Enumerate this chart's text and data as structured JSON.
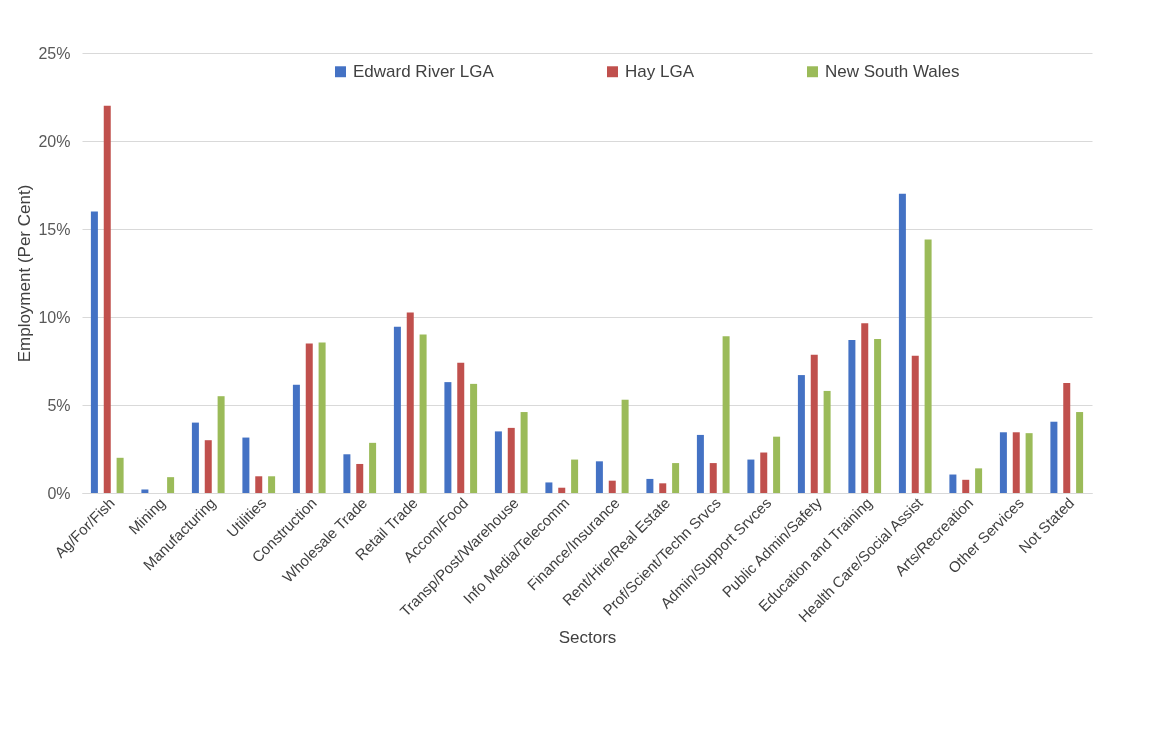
{
  "chart_data": {
    "type": "bar",
    "xlabel": "Sectors",
    "ylabel": "Employment (Per Cent)",
    "categories": [
      "Ag/For/Fish",
      "Mining",
      "Manufacturing",
      "Utilities",
      "Construction",
      "Wholesale Trade",
      "Retail Trade",
      "Accom/Food",
      "Transp/Post/Warehouse",
      "Info Media/Telecomm",
      "Finance/Insurance",
      "Rent/Hire/Real Estate",
      "Prof/Scient/Techn Srvcs",
      "Admin/Support Srvces",
      "Public Admin/Safety",
      "Education and Training",
      "Health Care/Social Assist",
      "Arts/Recreation",
      "Other Services",
      "Not Stated"
    ],
    "series": [
      {
        "name": "Edward River LGA",
        "color": "#4472c4",
        "values": [
          16.0,
          0.2,
          4.0,
          3.15,
          6.15,
          2.2,
          9.45,
          6.3,
          3.5,
          0.6,
          1.8,
          0.8,
          3.3,
          1.9,
          6.7,
          8.7,
          17.0,
          1.05,
          3.45,
          4.05
        ]
      },
      {
        "name": "Hay LGA",
        "color": "#c0504d",
        "values": [
          22.0,
          0,
          3.0,
          0.95,
          8.5,
          1.65,
          10.25,
          7.4,
          3.7,
          0.3,
          0.7,
          0.55,
          1.7,
          2.3,
          7.85,
          9.65,
          7.8,
          0.75,
          3.45,
          6.25
        ]
      },
      {
        "name": "New South Wales",
        "color": "#9bbb59",
        "values": [
          2.0,
          0.9,
          5.5,
          0.95,
          8.55,
          2.85,
          9.0,
          6.2,
          4.6,
          1.9,
          5.3,
          1.7,
          8.9,
          3.2,
          5.8,
          8.75,
          14.4,
          1.4,
          3.4,
          4.6
        ]
      }
    ],
    "ylim": [
      0,
      25
    ],
    "yticks": [
      {
        "value": 0,
        "label": "0%"
      },
      {
        "value": 5,
        "label": "5%"
      },
      {
        "value": 10,
        "label": "10%"
      },
      {
        "value": 15,
        "label": "15%"
      },
      {
        "value": 20,
        "label": "20%"
      },
      {
        "value": 25,
        "label": "25%"
      }
    ],
    "grid": "y",
    "legend": "top"
  }
}
